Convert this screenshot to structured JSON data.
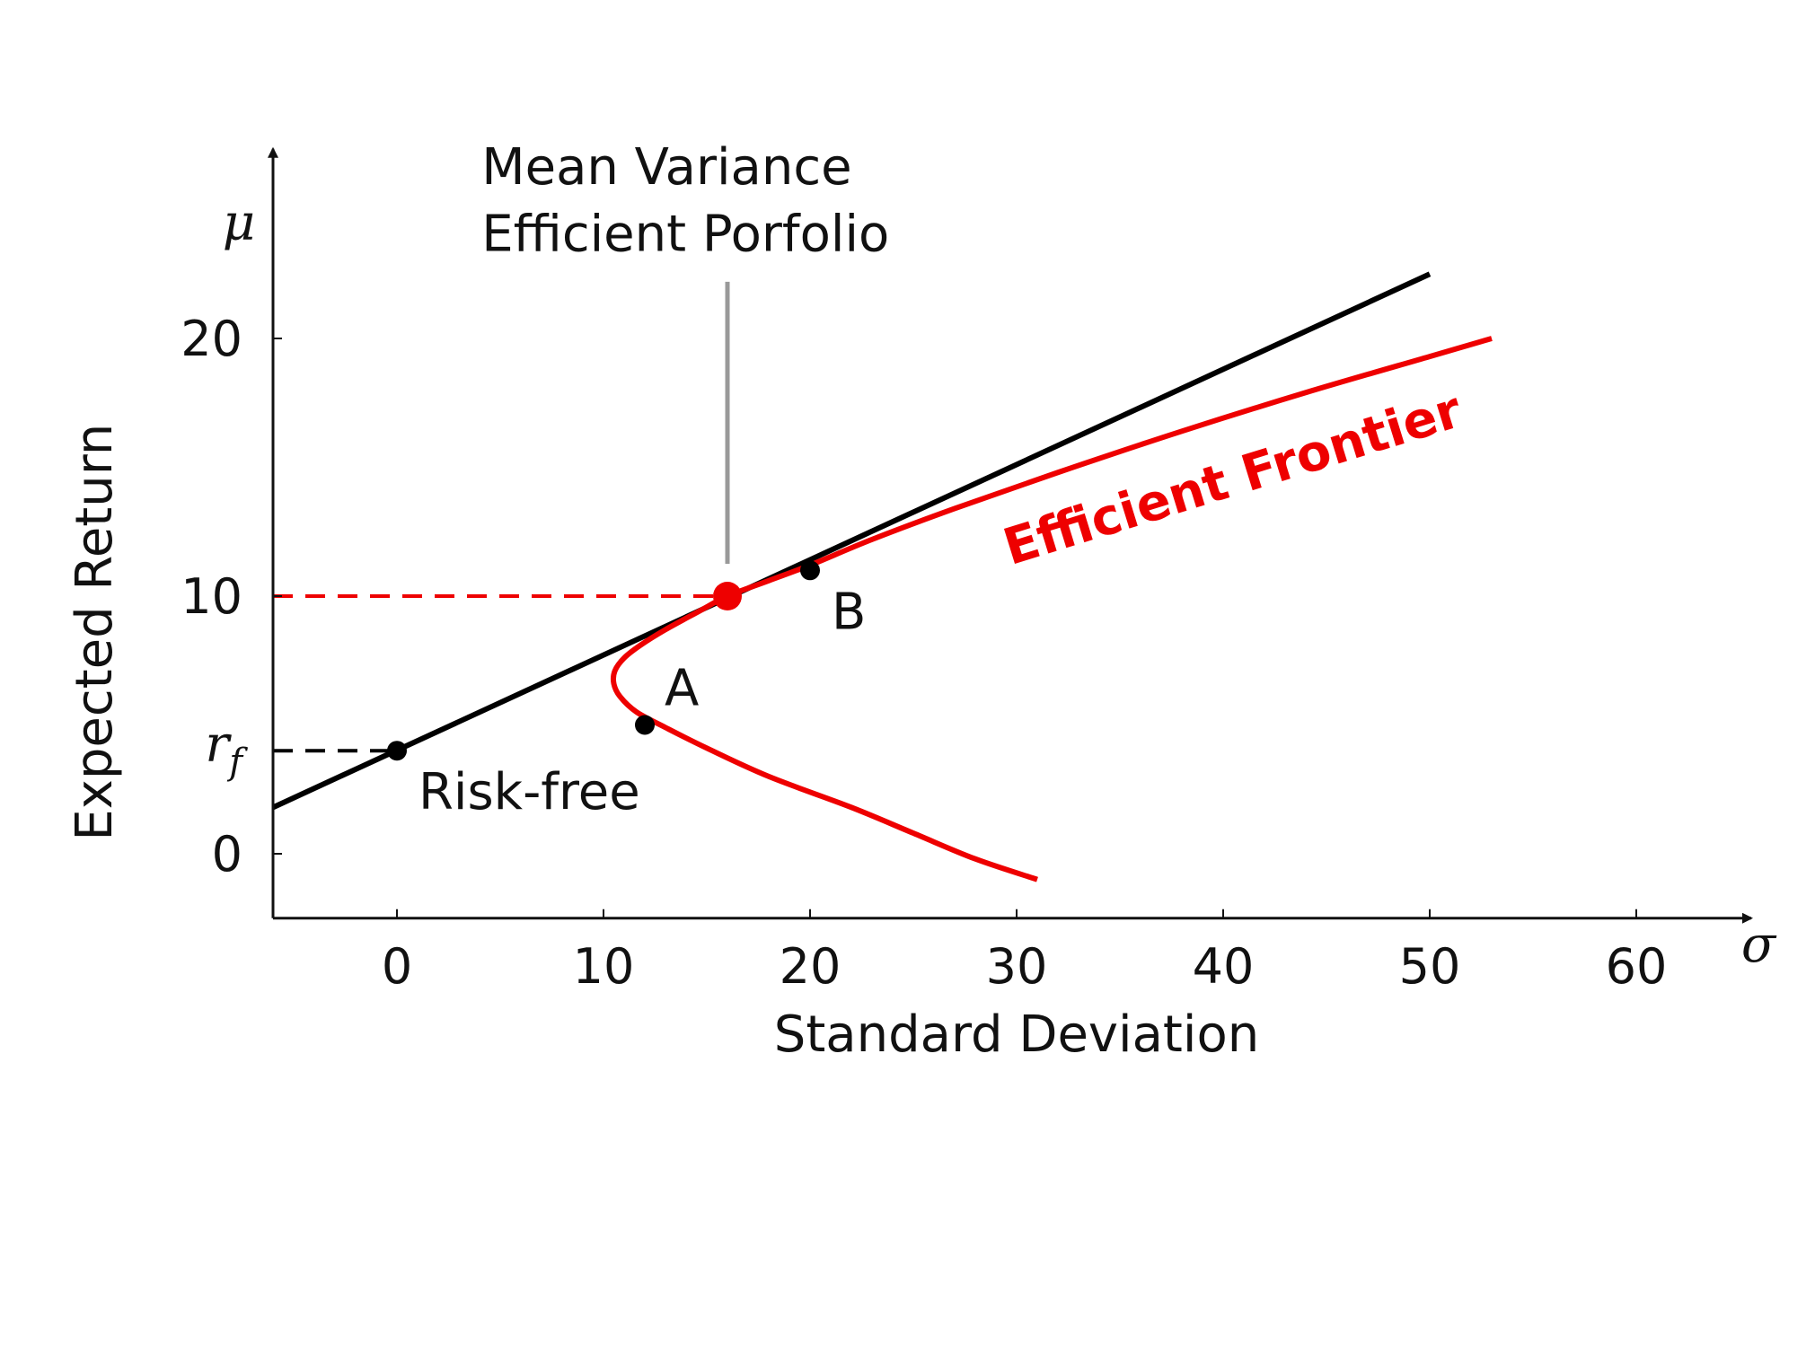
{
  "chart_data": {
    "type": "line",
    "title": "",
    "xlabel": "Standard Deviation",
    "ylabel": "Expected Return",
    "x_axis_symbol": "σ",
    "y_axis_symbol": "μ",
    "xlim": [
      -6,
      66
    ],
    "ylim": [
      -2.5,
      27.5
    ],
    "x_ticks": [
      0,
      10,
      20,
      30,
      40,
      50,
      60
    ],
    "y_ticks": [
      0,
      10,
      20
    ],
    "x_tick_labels": [
      "0",
      "10",
      "20",
      "30",
      "40",
      "50",
      "60"
    ],
    "y_tick_labels": [
      "0",
      "10",
      "20"
    ],
    "risk_free_tick_label": "r",
    "risk_free_tick_subscript": "f",
    "grid": false,
    "colors": {
      "frontier": "#ee0000",
      "capital_market_line": "#000000",
      "annotation_line": "#999999",
      "text": "#111111"
    },
    "series": [
      {
        "key": "capital_market_line",
        "color": "#000000",
        "points": [
          [
            -6,
            1.8
          ],
          [
            50,
            22.5
          ]
        ]
      },
      {
        "key": "efficient_frontier",
        "name": "Efficient Frontier",
        "color": "#ee0000",
        "points": [
          [
            31,
            -1.0
          ],
          [
            28,
            -0.2
          ],
          [
            25,
            0.8
          ],
          [
            22,
            1.8
          ],
          [
            18,
            3.0
          ],
          [
            15,
            4.1
          ],
          [
            13,
            4.9
          ],
          [
            11.6,
            5.5
          ],
          [
            10.8,
            6.1
          ],
          [
            10.5,
            6.6
          ],
          [
            10.55,
            7.1
          ],
          [
            11,
            7.6
          ],
          [
            11.8,
            8.1
          ],
          [
            13,
            8.7
          ],
          [
            14.6,
            9.4
          ],
          [
            16,
            10.0
          ],
          [
            18,
            10.6
          ],
          [
            20,
            11.2
          ],
          [
            23,
            12.2
          ],
          [
            27,
            13.4
          ],
          [
            32,
            14.8
          ],
          [
            38,
            16.4
          ],
          [
            44,
            17.9
          ],
          [
            50,
            19.3
          ],
          [
            53,
            20.0
          ]
        ]
      }
    ],
    "points": [
      {
        "key": "risk_free",
        "label": "Risk-free",
        "x": 0,
        "y": 4,
        "color": "#000000"
      },
      {
        "key": "a",
        "label": "A",
        "x": 12,
        "y": 5,
        "color": "#000000"
      },
      {
        "key": "b",
        "label": "B",
        "x": 20,
        "y": 11,
        "color": "#000000"
      },
      {
        "key": "tangency",
        "label": "Mean Variance Efficient Porfolio",
        "x": 16,
        "y": 10,
        "color": "#ee0000"
      }
    ],
    "reference_lines": [
      {
        "key": "tangency_return",
        "y": 10,
        "to_x": 16,
        "color": "#ee0000",
        "style": "dashed"
      },
      {
        "key": "risk_free_return",
        "y": 4,
        "to_x": 0,
        "color": "#000000",
        "style": "dashed"
      }
    ],
    "annotations": {
      "tangency_line1": "Mean Variance",
      "tangency_line2": "Efficient Porfolio",
      "frontier_label": "Efficient Frontier"
    }
  }
}
